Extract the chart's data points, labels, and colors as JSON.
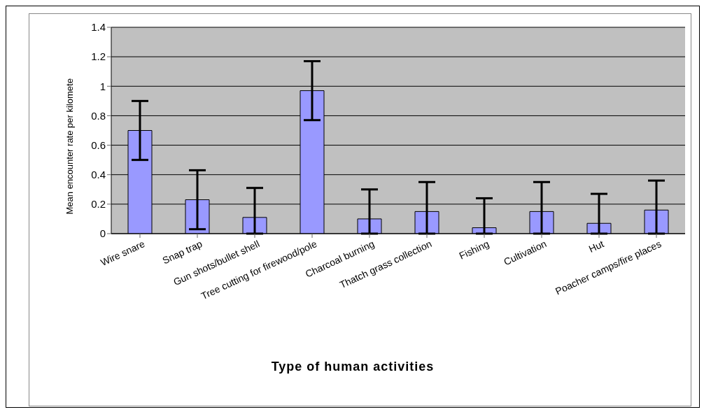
{
  "chart_data": {
    "type": "bar",
    "categories": [
      "Wire snare",
      "Snap trap",
      "Gun shots/bullet shell",
      "Tree cutting for firewood/pole",
      "Charcoal burning",
      "Thatch grass collection",
      "Fishing",
      "Cultivation",
      "Hut",
      "Poacher camps/fire places"
    ],
    "values": [
      0.7,
      0.23,
      0.11,
      0.97,
      0.1,
      0.15,
      0.04,
      0.15,
      0.07,
      0.16
    ],
    "errors": [
      0.2,
      0.2,
      [
        0,
        0.31
      ],
      0.2,
      [
        0,
        0.3
      ],
      [
        0,
        0.35
      ],
      [
        0,
        0.24
      ],
      [
        0,
        0.35
      ],
      [
        0,
        0.27
      ],
      [
        0,
        0.36
      ]
    ],
    "color": "#9999ff",
    "xlabel": "Type of human activities",
    "ylabel": "Mean encounter rate per kilomete",
    "ylim": [
      0,
      1.4
    ],
    "yticks": [
      0,
      0.2,
      0.4,
      0.6,
      0.8,
      1,
      1.2,
      1.4
    ],
    "grid": "y",
    "legend": false
  }
}
